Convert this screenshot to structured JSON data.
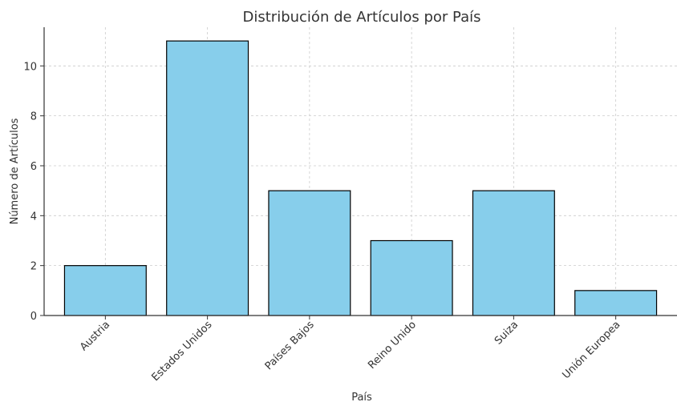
{
  "chart_data": {
    "type": "bar",
    "title": "Distribución de Artículos por País",
    "xlabel": "País",
    "ylabel": "Número de Artículos",
    "categories": [
      "Austria",
      "Estados Unidos",
      "Países Bajos",
      "Reino Unido",
      "Suiza",
      "Unión Europea"
    ],
    "values": [
      2,
      11,
      5,
      3,
      5,
      1
    ],
    "ylim": [
      0,
      11.55
    ],
    "yticks": [
      0,
      2,
      4,
      6,
      8,
      10
    ],
    "grid": true,
    "bar_color": "#87CEEB",
    "bar_edge_color": "#000000"
  }
}
